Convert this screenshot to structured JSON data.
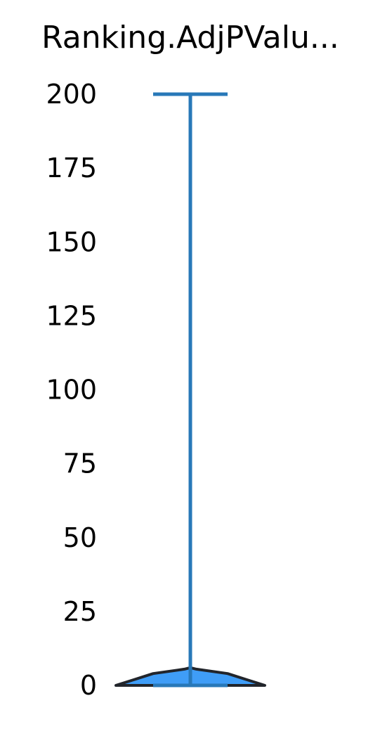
{
  "chart_data": {
    "type": "violin",
    "title": "Ranking.AdjPValu...",
    "xlabel": "",
    "ylabel": "",
    "ylim": [
      0,
      200
    ],
    "yticks": [
      0,
      25,
      50,
      75,
      100,
      125,
      150,
      175,
      200
    ],
    "grid": false,
    "legend": "none",
    "series": [
      {
        "min": 0,
        "max": 200,
        "median": 0,
        "density_profile": [
          {
            "y": 0.0,
            "width": 1.0
          },
          {
            "y": 2.0,
            "width": 0.75
          },
          {
            "y": 4.0,
            "width": 0.5
          },
          {
            "y": 5.5,
            "width": 0.08
          },
          {
            "y": 6.0,
            "width": 0.0
          }
        ]
      }
    ],
    "colors": {
      "violin_fill": "#3f9df7",
      "violin_edge": "#22252b",
      "whisker": "#2878b8"
    }
  }
}
